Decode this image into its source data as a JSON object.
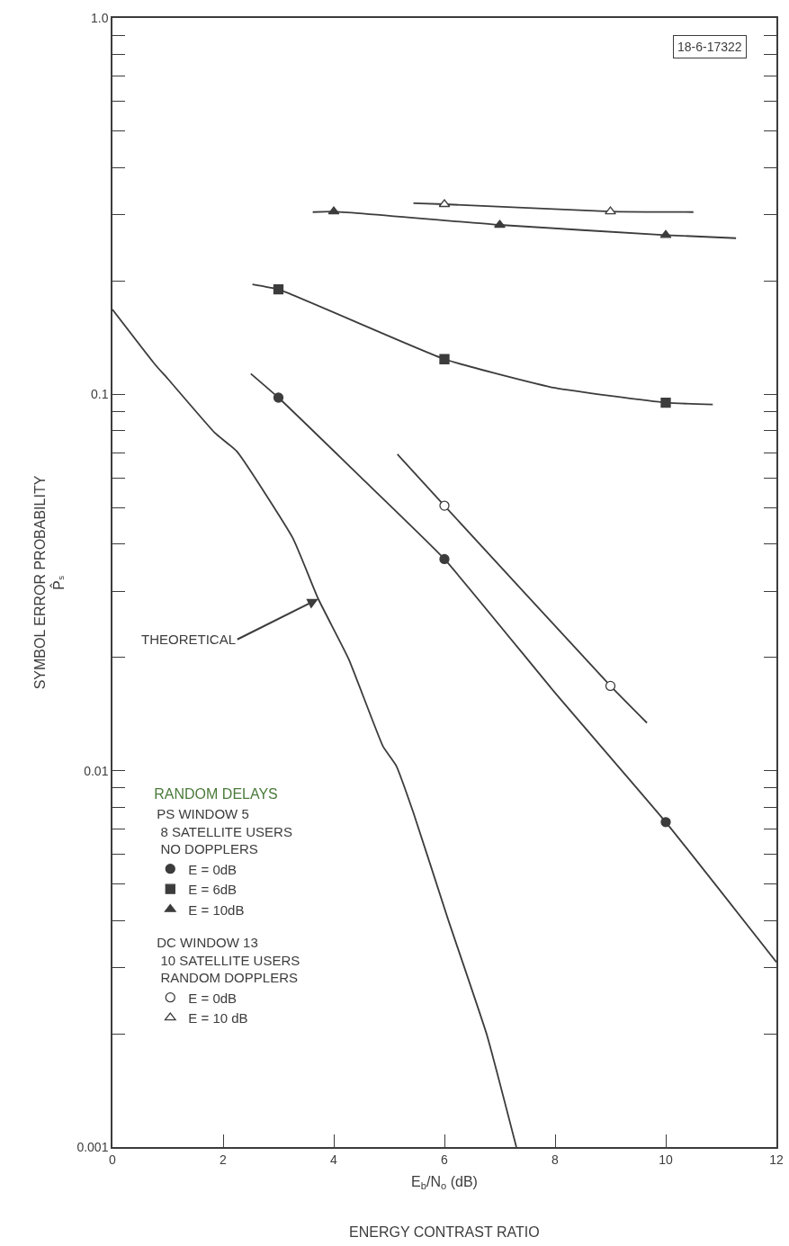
{
  "chart_data": {
    "type": "line",
    "xlabel": "E$_{b}$/N$_{o}$ (dB)",
    "ylabel": "SYMBOL ERROR PROBABILITY\nP̂ₛ",
    "legend_title": "RANDOM DELAYS",
    "log": "y",
    "grid": false,
    "legend": "bottom left",
    "line_style": "solid",
    "xlim": [
      0,
      12
    ],
    "xticks": [
      0,
      2,
      4,
      6,
      8,
      10,
      12
    ],
    "ylim": [
      0.001,
      1
    ],
    "yticks": [
      0.001,
      {
        "value": 0.002,
        "label": null
      },
      {
        "value": 0.003,
        "label": null
      },
      {
        "value": 0.004,
        "label": null
      },
      {
        "value": 0.005,
        "label": null
      },
      {
        "value": 0.006,
        "label": null
      },
      {
        "value": 0.007,
        "label": null
      },
      {
        "value": 0.008,
        "label": null
      },
      {
        "value": 0.009,
        "label": null
      },
      0.01,
      {
        "value": 0.02,
        "label": null
      },
      {
        "value": 0.03,
        "label": null
      },
      {
        "value": 0.04,
        "label": null
      },
      {
        "value": 0.05,
        "label": null
      },
      {
        "value": 0.06,
        "label": null
      },
      {
        "value": 0.07,
        "label": null
      },
      {
        "value": 0.08,
        "label": null
      },
      {
        "value": 0.09,
        "label": null
      },
      0.1,
      {
        "value": 0.2,
        "label": null
      },
      {
        "value": 0.3,
        "label": null
      },
      {
        "value": 0.4,
        "label": null
      },
      {
        "value": 0.5,
        "label": null
      },
      {
        "value": 0.6,
        "label": null
      },
      {
        "value": 0.7,
        "label": null
      },
      {
        "value": 0.8,
        "label": null
      },
      {
        "value": 0.9,
        "label": null
      },
      {
        "value": 1,
        "label": "1.0"
      }
    ],
    "annotations": [
      "18-6-17322",
      {
        "text": "THEORETICAL",
        "x": 3.72,
        "y": 0.0286
      },
      "ENERGY CONTRAST RATIO",
      "PS WINDOW 5\n 8 SATELLITE USERS\n NO DOPPLERS",
      "DC WINDOW 13\n 10 SATELLITE USERS\n RANDOM DOPPLERS"
    ],
    "series": [
      {
        "marker": "none",
        "color": "#3c3c3c",
        "x": [
          0,
          0.77,
          1,
          1.85,
          2.25,
          3.26,
          3.72,
          4.27,
          4.89,
          5.13,
          5.44,
          6.06,
          6.77,
          7.3
        ],
        "values": [
          0.168,
          0.12,
          0.11,
          0.079,
          0.0705,
          0.0415,
          0.0286,
          0.0198,
          0.0116,
          0.0103,
          0.00773,
          0.00405,
          0.00198,
          0.001
        ]
      },
      {
        "marker": "none",
        "color": "#3c3c3c",
        "x": [
          2.5,
          3,
          4.5,
          6,
          8,
          10,
          12
        ],
        "values": [
          0.1135,
          0.098,
          0.06,
          0.0365,
          0.0161,
          0.0073,
          0.0031
        ]
      },
      {
        "marker": "none",
        "color": "#3c3c3c",
        "x": [
          2.53,
          3,
          6,
          8,
          10,
          10.85
        ],
        "values": [
          0.196,
          0.19,
          0.124,
          0.104,
          0.095,
          0.094
        ]
      },
      {
        "marker": "none",
        "color": "#3c3c3c",
        "x": [
          3.62,
          4,
          7,
          10,
          11.27
        ],
        "values": [
          0.305,
          0.306,
          0.282,
          0.265,
          0.26
        ]
      },
      {
        "marker": "none",
        "color": "#3c3c3c",
        "x": [
          5.15,
          6,
          9,
          9.66
        ],
        "values": [
          0.0693,
          0.0506,
          0.0168,
          0.0134
        ]
      },
      {
        "marker": "none",
        "color": "#3c3c3c",
        "x": [
          5.44,
          6,
          9,
          10.5
        ],
        "values": [
          0.322,
          0.32,
          0.306,
          0.305
        ]
      },
      {
        "type": "scatter",
        "name": "E = 0dB",
        "marker": "circle",
        "color": "#3c3c3c",
        "x": [
          3,
          6,
          10
        ],
        "values": [
          0.098,
          0.0365,
          0.0073
        ]
      },
      {
        "type": "scatter",
        "name": "E = 6dB",
        "marker": "square",
        "color": "#3c3c3c",
        "x": [
          3,
          6,
          10
        ],
        "values": [
          0.19,
          0.124,
          0.095
        ]
      },
      {
        "type": "scatter",
        "name": "E = 10dB",
        "marker": "triangle",
        "color": "#3c3c3c",
        "x": [
          4,
          7,
          10
        ],
        "values": [
          0.306,
          0.282,
          0.265
        ]
      },
      {
        "type": "scatter",
        "name": "E = 0dB",
        "marker": "circle",
        "color": "#ffffff",
        "x": [
          6,
          9
        ],
        "values": [
          0.0506,
          0.0168
        ]
      },
      {
        "type": "scatter",
        "name": "E = 10 dB",
        "marker": "triangle",
        "color": "#ffffff",
        "x": [
          6,
          9
        ],
        "values": [
          0.32,
          0.306
        ]
      }
    ]
  }
}
